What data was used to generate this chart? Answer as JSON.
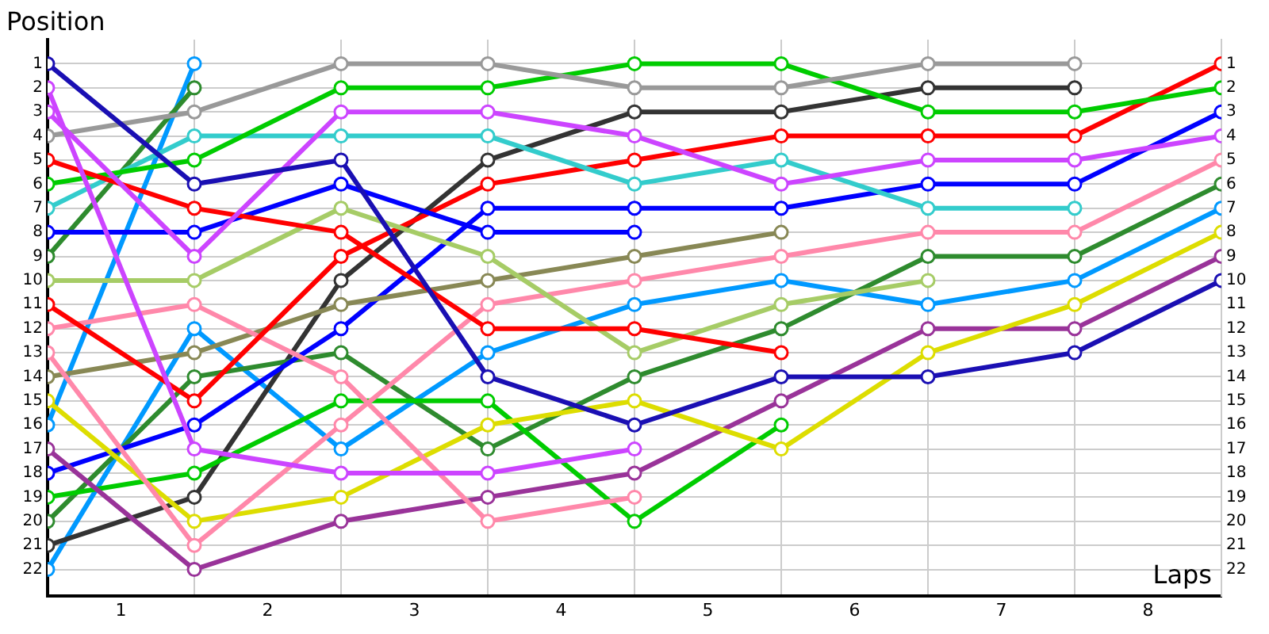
{
  "chart_data": {
    "type": "line",
    "xlabel": "Laps",
    "ylabel": "Position",
    "x": [
      0,
      1,
      2,
      3,
      4,
      5,
      6,
      7,
      8
    ],
    "xlim": [
      0,
      8
    ],
    "ylim": [
      23.1,
      0
    ],
    "y2lim": [
      23.1,
      0
    ],
    "xticks": [
      {
        "value": 0.5,
        "label": "1"
      },
      {
        "value": 1,
        "label": null
      },
      {
        "value": 1.5,
        "label": "2"
      },
      {
        "value": 2,
        "label": null
      },
      {
        "value": 2.5,
        "label": "3"
      },
      {
        "value": 3,
        "label": null
      },
      {
        "value": 3.5,
        "label": "4"
      },
      {
        "value": 4,
        "label": null
      },
      {
        "value": 4.5,
        "label": "5"
      },
      {
        "value": 5,
        "label": null
      },
      {
        "value": 5.5,
        "label": "6"
      },
      {
        "value": 6,
        "label": null
      },
      {
        "value": 6.5,
        "label": "7"
      },
      {
        "value": 7,
        "label": null
      },
      {
        "value": 7.5,
        "label": "8"
      }
    ],
    "yticks": [
      1,
      2,
      3,
      4,
      5,
      6,
      7,
      8,
      9,
      10,
      11,
      12,
      13,
      14,
      15,
      16,
      17,
      18,
      19,
      20,
      21,
      22
    ],
    "y2ticks": [
      1,
      2,
      3,
      4,
      5,
      6,
      7,
      8,
      9,
      10,
      11,
      12,
      13,
      14,
      15,
      16,
      17,
      18,
      19,
      20,
      21,
      22
    ],
    "grid": true,
    "legend": false,
    "marker": "circle",
    "line_style": "solid",
    "series": [
      {
        "color": "#1a0fb3",
        "values": [
          1,
          6,
          5,
          14,
          16,
          14,
          14,
          13,
          10
        ]
      },
      {
        "color": "#cc44ff",
        "values": [
          2,
          17,
          18,
          18,
          17,
          null,
          null,
          null,
          null
        ]
      },
      {
        "color": "#cc44ff",
        "values": [
          3,
          9,
          3,
          3,
          4,
          6,
          5,
          5,
          4
        ]
      },
      {
        "color": "#999999",
        "values": [
          4,
          3,
          1,
          1,
          2,
          2,
          1,
          1,
          null
        ]
      },
      {
        "color": "#ff0000",
        "values": [
          5,
          7,
          8,
          12,
          12,
          13,
          null,
          null,
          null
        ]
      },
      {
        "color": "#00cc00",
        "values": [
          6,
          5,
          2,
          2,
          1,
          1,
          3,
          3,
          2
        ]
      },
      {
        "color": "#33cccc",
        "values": [
          7,
          4,
          4,
          4,
          6,
          5,
          7,
          7,
          null
        ]
      },
      {
        "color": "#0000ff",
        "values": [
          8,
          8,
          6,
          8,
          8,
          null,
          null,
          null,
          null
        ]
      },
      {
        "color": "#2e8b2e",
        "values": [
          9,
          2,
          null,
          null,
          null,
          null,
          null,
          null,
          null
        ]
      },
      {
        "color": "#a6cc66",
        "values": [
          10,
          10,
          7,
          9,
          13,
          11,
          10,
          null,
          null
        ]
      },
      {
        "color": "#ff0000",
        "values": [
          11,
          15,
          9,
          6,
          5,
          4,
          4,
          4,
          1
        ]
      },
      {
        "color": "#ff88aa",
        "values": [
          12,
          11,
          14,
          20,
          19,
          null,
          null,
          null,
          null
        ]
      },
      {
        "color": "#ff88aa",
        "values": [
          13,
          21,
          16,
          11,
          10,
          9,
          8,
          8,
          5
        ]
      },
      {
        "color": "#888855",
        "values": [
          14,
          13,
          11,
          10,
          9,
          8,
          null,
          null,
          null
        ]
      },
      {
        "color": "#dddd00",
        "values": [
          15,
          20,
          19,
          16,
          15,
          17,
          13,
          11,
          8
        ]
      },
      {
        "color": "#0099ff",
        "values": [
          16,
          1,
          null,
          null,
          null,
          null,
          null,
          null,
          null
        ]
      },
      {
        "color": "#993399",
        "values": [
          17,
          22,
          20,
          19,
          18,
          15,
          12,
          12,
          9
        ]
      },
      {
        "color": "#0000ff",
        "values": [
          18,
          16,
          12,
          7,
          7,
          7,
          6,
          6,
          3
        ]
      },
      {
        "color": "#00cc00",
        "values": [
          19,
          18,
          15,
          15,
          20,
          16,
          null,
          null,
          null
        ]
      },
      {
        "color": "#2e8b2e",
        "values": [
          20,
          14,
          13,
          17,
          14,
          12,
          9,
          9,
          6
        ]
      },
      {
        "color": "#333333",
        "values": [
          21,
          19,
          10,
          5,
          3,
          3,
          2,
          2,
          null
        ]
      },
      {
        "color": "#0099ff",
        "values": [
          22,
          12,
          17,
          13,
          11,
          10,
          11,
          10,
          7
        ]
      }
    ]
  }
}
